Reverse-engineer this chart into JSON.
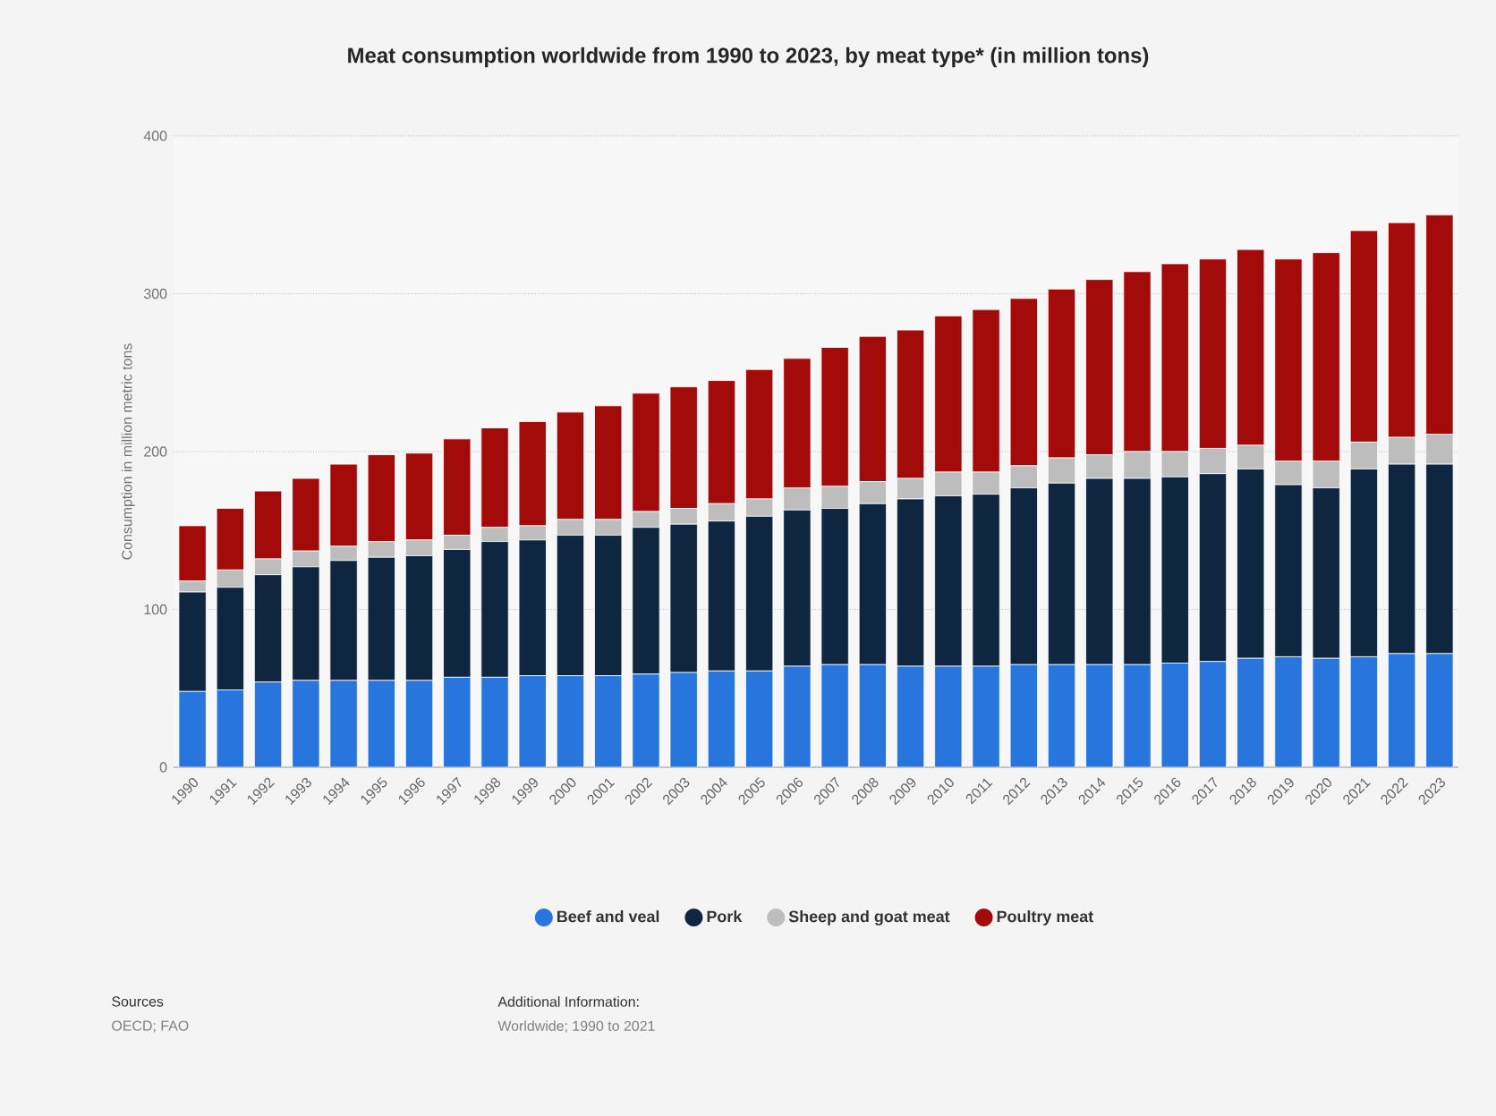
{
  "chart_data": {
    "type": "bar",
    "stacked": true,
    "title": "Meat consumption worldwide from 1990 to 2023, by meat type* (in million tons)",
    "ylabel": "Consumption in million metric tons",
    "categories": [
      "1990",
      "1991",
      "1992",
      "1993",
      "1994",
      "1995",
      "1996",
      "1997",
      "1998",
      "1999",
      "2000",
      "2001",
      "2002",
      "2003",
      "2004",
      "2005",
      "2006",
      "2007",
      "2008",
      "2009",
      "2010",
      "2011",
      "2012",
      "2013",
      "2014",
      "2015",
      "2016",
      "2017",
      "2018",
      "2019",
      "2020",
      "2021",
      "2022",
      "2023"
    ],
    "series": [
      {
        "name": "Beef and veal",
        "color": "#2876dd",
        "values": [
          48,
          49,
          54,
          55,
          55,
          55,
          55,
          57,
          57,
          58,
          58,
          58,
          59,
          60,
          61,
          61,
          64,
          65,
          65,
          64,
          64,
          64,
          65,
          65,
          65,
          65,
          66,
          67,
          69,
          70,
          69,
          70,
          72,
          72
        ]
      },
      {
        "name": "Pork",
        "color": "#0f2640",
        "values": [
          63,
          65,
          68,
          72,
          76,
          78,
          79,
          81,
          86,
          86,
          89,
          89,
          93,
          94,
          95,
          98,
          99,
          99,
          102,
          106,
          108,
          109,
          112,
          115,
          118,
          118,
          118,
          119,
          120,
          109,
          108,
          119,
          120,
          120
        ]
      },
      {
        "name": "Sheep and goat meat",
        "color": "#bdbdbd",
        "values": [
          7,
          11,
          10,
          10,
          9,
          10,
          10,
          9,
          9,
          9,
          10,
          10,
          10,
          10,
          11,
          11,
          14,
          14,
          14,
          13,
          15,
          14,
          14,
          16,
          15,
          17,
          16,
          16,
          15,
          15,
          17,
          17,
          17,
          19
        ]
      },
      {
        "name": "Poultry meat",
        "color": "#a30b0b",
        "values": [
          35,
          39,
          43,
          46,
          52,
          55,
          55,
          61,
          63,
          66,
          68,
          72,
          75,
          77,
          78,
          82,
          82,
          88,
          92,
          94,
          99,
          103,
          106,
          107,
          111,
          114,
          119,
          120,
          124,
          128,
          132,
          134,
          136,
          139
        ]
      }
    ],
    "ylim": [
      0,
      400
    ],
    "yticks": [
      0,
      100,
      200,
      300,
      400
    ],
    "grid": "y",
    "legend": "bottom",
    "annotations": [
      "Sources",
      "OECD; FAO",
      "Additional Information:",
      "Worldwide; 1990 to 2021"
    ]
  }
}
